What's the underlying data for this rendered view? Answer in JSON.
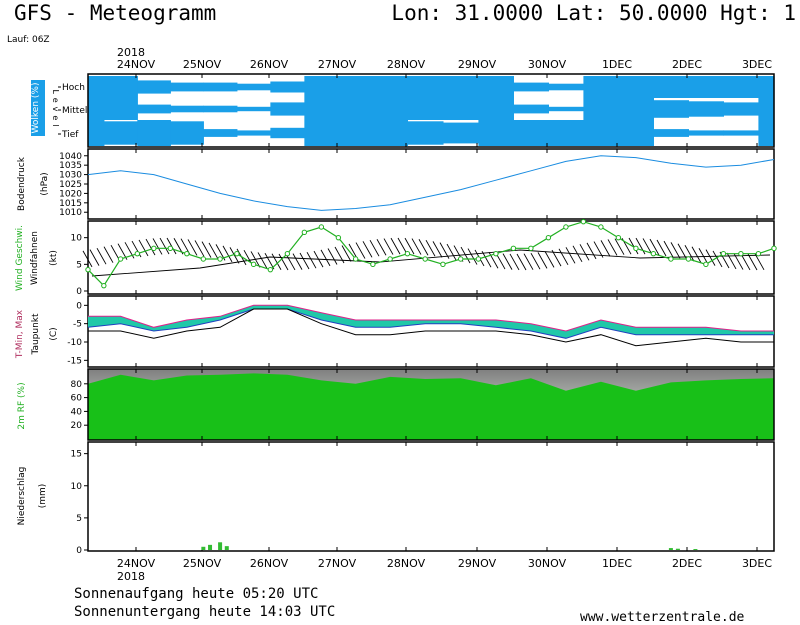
{
  "header": {
    "title": "GFS - Meteogramm",
    "coords": "Lon: 31.0000 Lat: 50.0000 Hgt: 1",
    "run": "Lauf: 06Z"
  },
  "footer": {
    "sunrise": "Sonnenaufgang heute 05:20 UTC",
    "sunset": "Sonnenuntergang heute 14:03 UTC",
    "site": "www.wetterzentrale.de"
  },
  "time_axis": {
    "year": "2018",
    "labels": [
      "24NOV",
      "25NOV",
      "26NOV",
      "27NOV",
      "28NOV",
      "29NOV",
      "30NOV",
      "1DEC",
      "2DEC",
      "3DEC"
    ]
  },
  "colors": {
    "cloud": "#1a9fe8",
    "pressure": "#1a8ce0",
    "wind": "#22b022",
    "tmax_cover": "#20c8a8",
    "tmax_line": "#e0208a",
    "tmin_line": "#2040c0",
    "rh_fill": "#18c018",
    "precip": "#33bb33"
  },
  "chart_data": [
    {
      "type": "area",
      "panel": "clouds",
      "ylabel": "Wolken (%)",
      "ylabel_right": "Level",
      "levels": [
        "Hoch",
        "Mittel",
        "Tief"
      ],
      "x_days": [
        0,
        0.5,
        1,
        1.5,
        2,
        2.5,
        3,
        3.5,
        4,
        4.5,
        5,
        5.5,
        6,
        6.5,
        7,
        7.5,
        8,
        8.5,
        9,
        9.5,
        10
      ],
      "series": [
        {
          "name": "Hoch",
          "values": [
            100,
            100,
            60,
            40,
            40,
            30,
            50,
            100,
            100,
            100,
            100,
            100,
            100,
            40,
            30,
            100,
            100,
            100,
            100,
            100,
            100
          ]
        },
        {
          "name": "Mittel",
          "values": [
            100,
            100,
            40,
            30,
            30,
            20,
            60,
            100,
            100,
            100,
            100,
            100,
            100,
            40,
            20,
            100,
            100,
            80,
            70,
            60,
            100
          ]
        },
        {
          "name": "Tief",
          "values": [
            100,
            90,
            100,
            90,
            30,
            20,
            40,
            100,
            100,
            100,
            90,
            80,
            100,
            100,
            100,
            100,
            100,
            30,
            20,
            20,
            100
          ]
        }
      ]
    },
    {
      "type": "line",
      "panel": "pressure",
      "ylabel": "Bodendruck",
      "unit": "(hPa)",
      "yticks": [
        1010,
        1015,
        1020,
        1025,
        1030,
        1035,
        1040
      ],
      "ylim": [
        1008,
        1042
      ],
      "x_days": [
        0,
        0.5,
        1,
        1.5,
        2,
        2.5,
        3,
        3.5,
        4,
        4.5,
        5,
        5.5,
        6,
        6.5,
        7,
        7.5,
        8,
        8.5,
        9,
        9.5,
        10
      ],
      "values": [
        1030,
        1032,
        1030,
        1025,
        1020,
        1016,
        1013,
        1011,
        1012,
        1014,
        1018,
        1022,
        1027,
        1032,
        1037,
        1040,
        1039,
        1036,
        1034,
        1035,
        1038
      ]
    },
    {
      "type": "line",
      "panel": "wind",
      "ylabel": "Wind Geschwi.",
      "ylabel2": "Windfahnen",
      "unit": "(kt)",
      "yticks": [
        0,
        5,
        10
      ],
      "ylim": [
        0,
        12
      ],
      "x_days": [
        0,
        0.25,
        0.5,
        0.75,
        1,
        1.25,
        1.5,
        1.75,
        2,
        2.25,
        2.5,
        2.75,
        3,
        3.25,
        3.5,
        3.75,
        4,
        4.25,
        4.5,
        4.75,
        5,
        5.25,
        5.5,
        5.75,
        6,
        6.25,
        6.5,
        6.75,
        7,
        7.25,
        7.5,
        7.75,
        8,
        8.25,
        8.5,
        8.75,
        9,
        9.25,
        9.5,
        9.75,
        10
      ],
      "values": [
        4,
        1,
        6,
        7,
        8,
        8,
        7,
        6,
        6,
        7,
        5,
        4,
        7,
        11,
        12,
        10,
        6,
        5,
        6,
        7,
        6,
        5,
        6,
        6,
        7,
        8,
        8,
        10,
        12,
        13,
        12,
        10,
        8,
        7,
        6,
        6,
        5,
        7,
        7,
        7,
        8
      ]
    },
    {
      "type": "line",
      "panel": "temperature",
      "ylabel": "T-Min, Max",
      "ylabel2": "Taupunkt",
      "unit": "(C)",
      "yticks": [
        0,
        -5,
        -10,
        -15
      ],
      "ylim": [
        -16,
        2
      ],
      "x_days": [
        0,
        0.5,
        1,
        1.5,
        2,
        2.5,
        3,
        3.5,
        4,
        4.5,
        5,
        5.5,
        6,
        6.5,
        7,
        7.5,
        8,
        8.5,
        9,
        9.5,
        10
      ],
      "series": [
        {
          "name": "T-Max",
          "values": [
            -3,
            -3,
            -6,
            -4,
            -3,
            0,
            0,
            -2,
            -4,
            -4,
            -4,
            -4,
            -4,
            -5,
            -7,
            -4,
            -6,
            -6,
            -6,
            -7,
            -7
          ]
        },
        {
          "name": "T-Min",
          "values": [
            -6,
            -5,
            -7,
            -6,
            -4,
            -1,
            -1,
            -4,
            -6,
            -6,
            -5,
            -5,
            -6,
            -7,
            -9,
            -6,
            -8,
            -8,
            -8,
            -8,
            -8
          ]
        },
        {
          "name": "Taupunkt",
          "values": [
            -7,
            -7,
            -9,
            -7,
            -6,
            -1,
            -1,
            -5,
            -8,
            -8,
            -7,
            -7,
            -7,
            -8,
            -10,
            -8,
            -11,
            -10,
            -9,
            -10,
            -10
          ]
        }
      ]
    },
    {
      "type": "area",
      "panel": "humidity",
      "ylabel": "2m RF (%)",
      "yticks": [
        20,
        40,
        60,
        80
      ],
      "ylim": [
        0,
        100
      ],
      "x_days": [
        0,
        0.5,
        1,
        1.5,
        2,
        2.5,
        3,
        3.5,
        4,
        4.5,
        5,
        5.5,
        6,
        6.5,
        7,
        7.5,
        8,
        8.5,
        9,
        9.5,
        10
      ],
      "values": [
        80,
        93,
        85,
        92,
        93,
        95,
        93,
        85,
        80,
        90,
        87,
        88,
        78,
        88,
        70,
        83,
        70,
        82,
        85,
        87,
        88
      ]
    },
    {
      "type": "bar",
      "panel": "precipitation",
      "ylabel": "Niederschlag",
      "unit": "(mm)",
      "yticks": [
        0,
        5,
        10,
        15
      ],
      "ylim": [
        0,
        16.5
      ],
      "x_days": [
        1.75,
        1.85,
        2.0,
        2.1,
        8.5,
        8.6,
        8.85
      ],
      "values": [
        0.5,
        0.8,
        1.2,
        0.6,
        0.3,
        0.2,
        0.15
      ]
    }
  ]
}
